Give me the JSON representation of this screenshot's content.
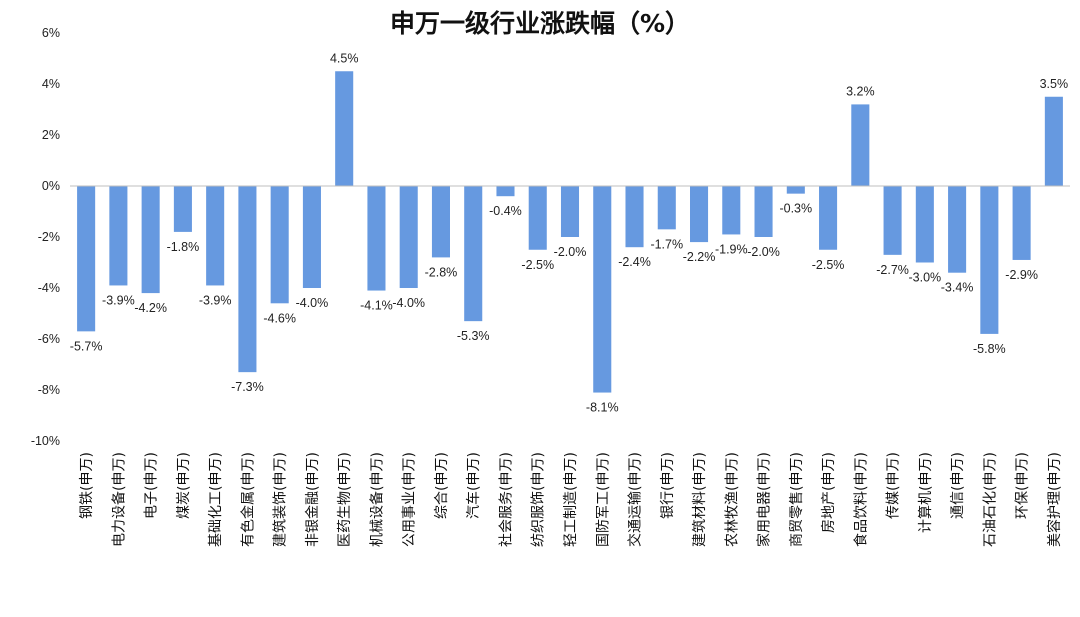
{
  "chart_data": {
    "type": "bar",
    "title": "申万一级行业涨跌幅（%）",
    "xlabel": "",
    "ylabel": "",
    "ylim": [
      -10,
      6
    ],
    "yticks": [
      6,
      4,
      2,
      0,
      -2,
      -4,
      -6,
      -8,
      -10
    ],
    "ytick_labels": [
      "6%",
      "4%",
      "2%",
      "0%",
      "-2%",
      "-4%",
      "-6%",
      "-8%",
      "-10%"
    ],
    "grid": false,
    "bar_color": "#6699e0",
    "categories": [
      "钢铁(申万)",
      "电力设备(申万)",
      "电子(申万)",
      "煤炭(申万)",
      "基础化工(申万)",
      "有色金属(申万)",
      "建筑装饰(申万)",
      "非银金融(申万)",
      "医药生物(申万)",
      "机械设备(申万)",
      "公用事业(申万)",
      "综合(申万)",
      "汽车(申万)",
      "社会服务(申万)",
      "纺织服饰(申万)",
      "轻工制造(申万)",
      "国防军工(申万)",
      "交通运输(申万)",
      "银行(申万)",
      "建筑材料(申万)",
      "农林牧渔(申万)",
      "家用电器(申万)",
      "商贸零售(申万)",
      "房地产(申万)",
      "食品饮料(申万)",
      "传媒(申万)",
      "计算机(申万)",
      "通信(申万)",
      "石油石化(申万)",
      "环保(申万)",
      "美容护理(申万)"
    ],
    "values": [
      -5.7,
      -3.9,
      -4.2,
      -1.8,
      -3.9,
      -7.3,
      -4.6,
      -4.0,
      4.5,
      -4.1,
      -4.0,
      -2.8,
      -5.3,
      -0.4,
      -2.5,
      -2.0,
      -8.1,
      -2.4,
      -1.7,
      -2.2,
      -1.9,
      -2.0,
      -0.3,
      -2.5,
      3.2,
      -2.7,
      -3.0,
      -3.4,
      -5.8,
      -2.9,
      3.5
    ],
    "data_labels": [
      "-5.7%",
      "-3.9%",
      "-4.2%",
      "-1.8%",
      "-3.9%",
      "-7.3%",
      "-4.6%",
      "-4.0%",
      "4.5%",
      "-4.1%",
      "-4.0%",
      "-2.8%",
      "-5.3%",
      "-0.4%",
      "-2.5%",
      "-2.0%",
      "-8.1%",
      "-2.4%",
      "-1.7%",
      "-2.2%",
      "-1.9%",
      "-2.0%",
      "-0.3%",
      "-2.5%",
      "3.2%",
      "-2.7%",
      "-3.0%",
      "-3.4%",
      "-5.8%",
      "-2.9%",
      "3.5%"
    ]
  }
}
